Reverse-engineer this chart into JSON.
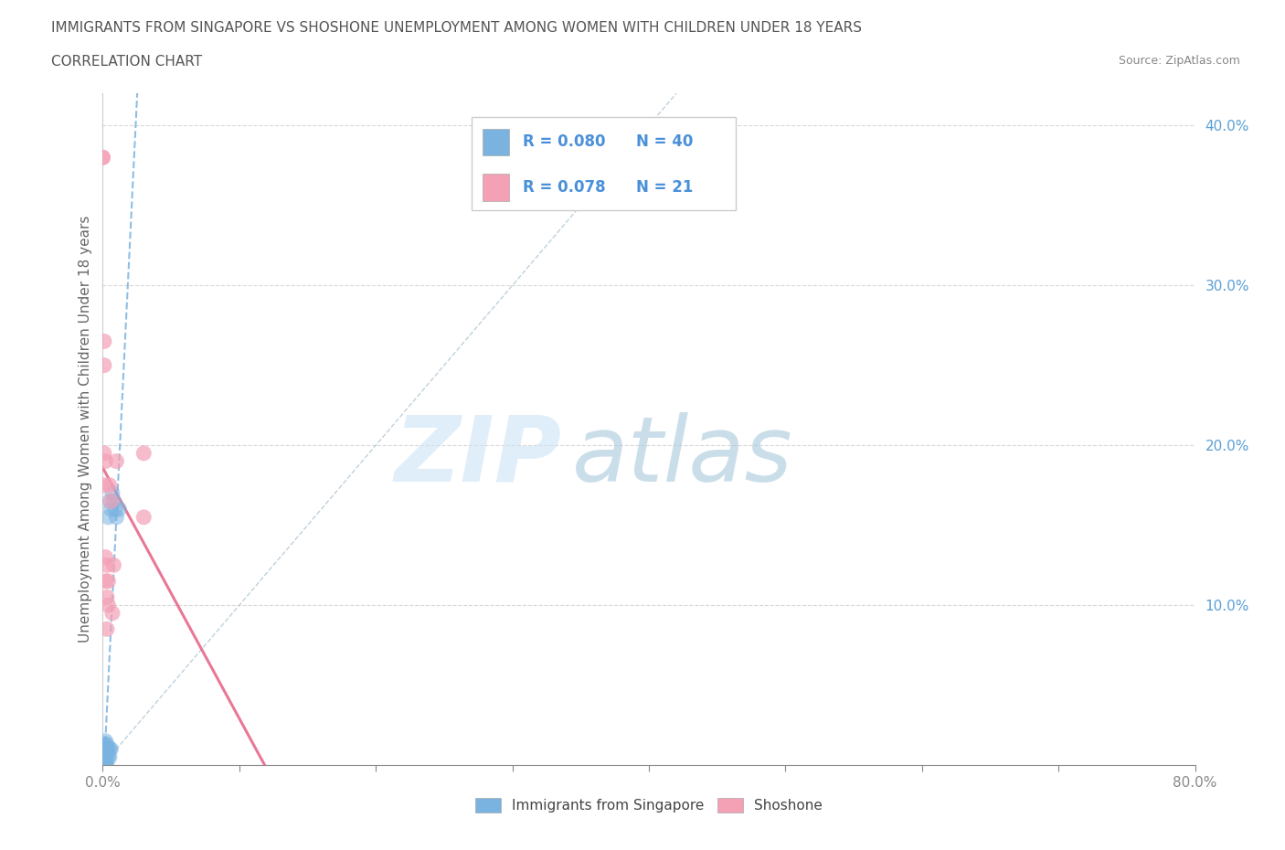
{
  "title": "IMMIGRANTS FROM SINGAPORE VS SHOSHONE UNEMPLOYMENT AMONG WOMEN WITH CHILDREN UNDER 18 YEARS",
  "subtitle": "CORRELATION CHART",
  "source": "Source: ZipAtlas.com",
  "ylabel": "Unemployment Among Women with Children Under 18 years",
  "xlim": [
    0.0,
    0.8
  ],
  "ylim": [
    0.0,
    0.42
  ],
  "xticks": [
    0.0,
    0.1,
    0.2,
    0.3,
    0.4,
    0.5,
    0.6,
    0.7,
    0.8
  ],
  "xtick_labels": [
    "0.0%",
    "",
    "",
    "",
    "",
    "",
    "",
    "",
    "80.0%"
  ],
  "right_yticks": [
    0.1,
    0.2,
    0.3,
    0.4
  ],
  "right_ytick_labels": [
    "10.0%",
    "20.0%",
    "30.0%",
    "40.0%"
  ],
  "background_color": "#ffffff",
  "blue_color": "#7ab3e0",
  "pink_color": "#f4a0b5",
  "trendline_blue_color": "#7ab3e0",
  "trendline_pink_color": "#e87090",
  "diagonal_color": "#b8ccd8",
  "grid_color": "#d8d8d8",
  "legend_r1": "0.080",
  "legend_n1": "40",
  "legend_r2": "0.078",
  "legend_n2": "21",
  "legend_text_color": "#4a90d9",
  "singapore_x": [
    0.0,
    0.0,
    0.0,
    0.0,
    0.0,
    0.001,
    0.001,
    0.001,
    0.001,
    0.001,
    0.001,
    0.001,
    0.001,
    0.001,
    0.002,
    0.002,
    0.002,
    0.002,
    0.002,
    0.002,
    0.002,
    0.002,
    0.003,
    0.003,
    0.003,
    0.003,
    0.003,
    0.004,
    0.004,
    0.004,
    0.005,
    0.005,
    0.005,
    0.006,
    0.006,
    0.007,
    0.008,
    0.009,
    0.01,
    0.012
  ],
  "singapore_y": [
    0.0,
    0.0,
    0.0,
    0.002,
    0.003,
    0.0,
    0.0,
    0.001,
    0.002,
    0.003,
    0.005,
    0.007,
    0.01,
    0.013,
    0.0,
    0.0,
    0.002,
    0.005,
    0.008,
    0.01,
    0.012,
    0.015,
    0.0,
    0.005,
    0.008,
    0.01,
    0.013,
    0.005,
    0.01,
    0.155,
    0.005,
    0.01,
    0.165,
    0.01,
    0.16,
    0.17,
    0.165,
    0.16,
    0.155,
    0.16
  ],
  "shoshone_x": [
    0.0,
    0.0,
    0.001,
    0.001,
    0.001,
    0.001,
    0.002,
    0.002,
    0.002,
    0.003,
    0.003,
    0.003,
    0.004,
    0.004,
    0.005,
    0.006,
    0.007,
    0.008,
    0.01,
    0.03,
    0.03
  ],
  "shoshone_y": [
    0.38,
    0.38,
    0.265,
    0.25,
    0.195,
    0.175,
    0.13,
    0.115,
    0.19,
    0.125,
    0.105,
    0.085,
    0.1,
    0.115,
    0.175,
    0.165,
    0.095,
    0.125,
    0.19,
    0.195,
    0.155
  ]
}
